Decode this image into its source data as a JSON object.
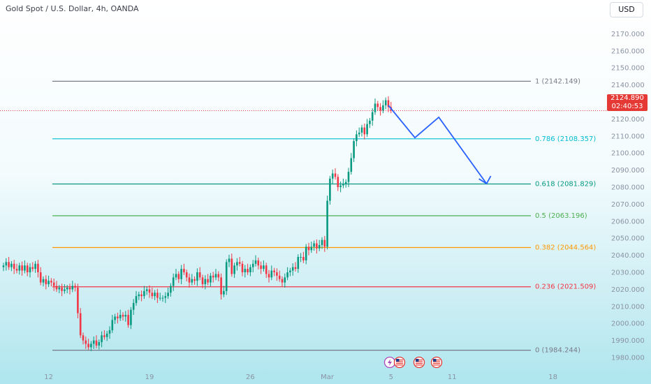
{
  "header": {
    "title": "Gold Spot / U.S. Dollar, 4h, OANDA",
    "currency": "USD"
  },
  "last_price": {
    "value": "2124.890",
    "countdown": "02:40:53",
    "color": "#e53935"
  },
  "chart_data": {
    "type": "line",
    "series_kind": "candlestick",
    "y_ticks": [
      "2170.000",
      "2160.000",
      "2150.000",
      "2140.000",
      "2130.000",
      "2120.000",
      "2110.000",
      "2100.000",
      "2090.000",
      "2080.000",
      "2070.000",
      "2060.000",
      "2050.000",
      "2040.000",
      "2030.000",
      "2020.000",
      "2010.000",
      "2000.000",
      "1990.000",
      "1980.000"
    ],
    "x_ticks": [
      "12",
      "19",
      "26",
      "Mar",
      "5",
      "11",
      "18"
    ],
    "ylim": [
      1978,
      2180
    ],
    "fib_levels": [
      {
        "ratio": "1",
        "value": 2142.149,
        "label": "1 (2142.149)",
        "color": "#787b86"
      },
      {
        "ratio": "0.786",
        "value": 2108.357,
        "label": "0.786 (2108.357)",
        "color": "#00bcd4"
      },
      {
        "ratio": "0.618",
        "value": 2081.829,
        "label": "0.618 (2081.829)",
        "color": "#089981"
      },
      {
        "ratio": "0.5",
        "value": 2063.196,
        "label": "0.5 (2063.196)",
        "color": "#4caf50"
      },
      {
        "ratio": "0.382",
        "value": 2044.564,
        "label": "0.382 (2044.564)",
        "color": "#ff9800"
      },
      {
        "ratio": "0.236",
        "value": 2021.509,
        "label": "0.236 (2021.509)",
        "color": "#f23645"
      },
      {
        "ratio": "0",
        "value": 1984.244,
        "label": "0 (1984.244)",
        "color": "#787b86"
      }
    ],
    "closes": [
      2034,
      2036,
      2033,
      2035,
      2032,
      2031,
      2034,
      2031,
      2034,
      2030,
      2033,
      2032,
      2035,
      2030,
      2024,
      2026,
      2023,
      2025,
      2024,
      2022,
      2020,
      2021,
      2019,
      2020,
      2021,
      2020,
      2022,
      2021,
      2006,
      1993,
      1990,
      1988,
      1986,
      1988,
      1990,
      1987,
      1989,
      1993,
      1992,
      1994,
      1996,
      2002,
      2004,
      2003,
      2005,
      2004,
      2005,
      1999,
      2008,
      2012,
      2016,
      2017,
      2016,
      2019,
      2020,
      2018,
      2016,
      2018,
      2015,
      2015,
      2015,
      2016,
      2018,
      2022,
      2027,
      2029,
      2026,
      2032,
      2030,
      2027,
      2024,
      2026,
      2025,
      2030,
      2027,
      2023,
      2026,
      2024,
      2028,
      2027,
      2029,
      2027,
      2017,
      2019,
      2036,
      2038,
      2029,
      2034,
      2036,
      2035,
      2030,
      2032,
      2030,
      2033,
      2035,
      2037,
      2034,
      2032,
      2034,
      2029,
      2027,
      2031,
      2030,
      2028,
      2026,
      2024,
      2027,
      2030,
      2031,
      2033,
      2032,
      2039,
      2039,
      2037,
      2045,
      2043,
      2045,
      2047,
      2044,
      2046,
      2049,
      2045,
      2072,
      2085,
      2088,
      2086,
      2080,
      2081,
      2082,
      2083,
      2089,
      2097,
      2107,
      2111,
      2112,
      2115,
      2111,
      2117,
      2119,
      2124,
      2129,
      2127,
      2125,
      2128,
      2131,
      2127,
      2125
    ],
    "projection": [
      {
        "i": 145,
        "y": 2128
      },
      {
        "i": 155,
        "y": 2109
      },
      {
        "i": 164,
        "y": 2121
      },
      {
        "i": 182,
        "y": 2082
      }
    ],
    "colors": {
      "up": "#089981",
      "down": "#f23645",
      "projection": "#2962ff"
    }
  },
  "events": [
    {
      "name": "lightning-event-icon"
    },
    {
      "name": "us-flag-icon"
    },
    {
      "name": "us-flag-icon"
    },
    {
      "name": "us-flag-icon"
    }
  ]
}
